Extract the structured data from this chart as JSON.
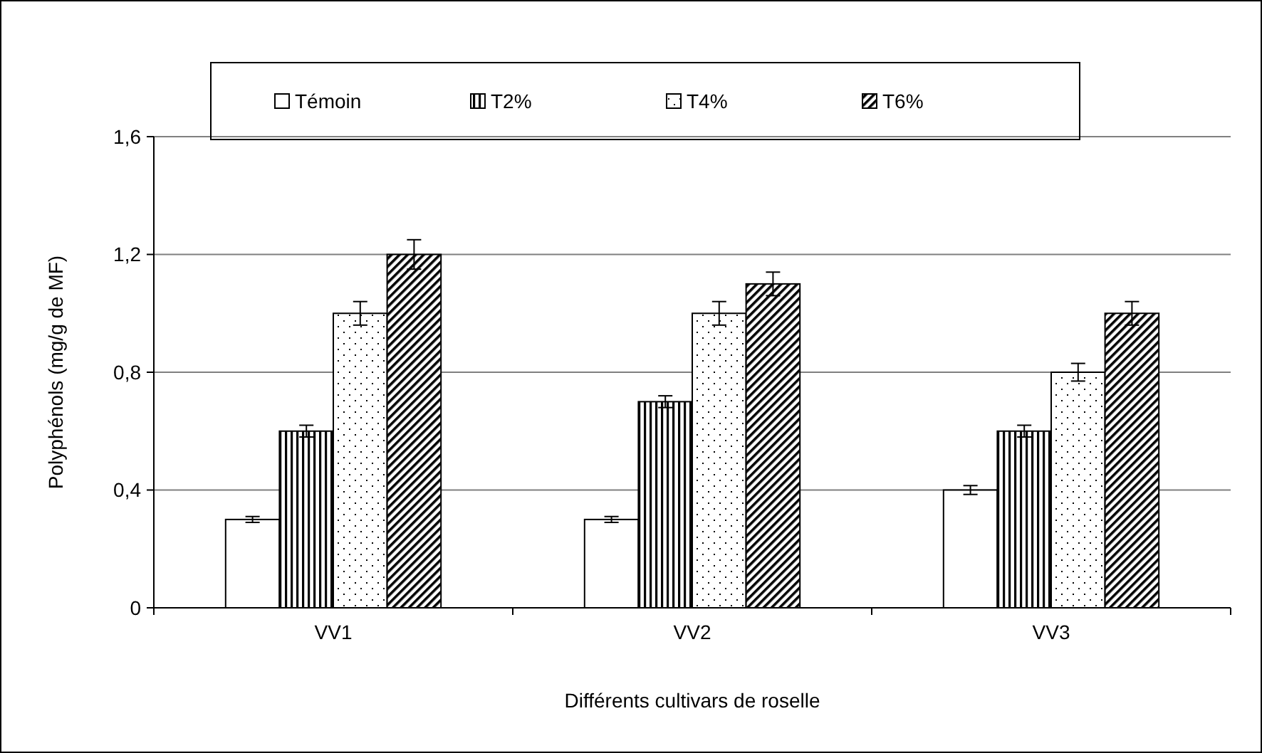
{
  "chart_data": {
    "type": "bar",
    "xlabel": "Différents cultivars de roselle",
    "ylabel": "Polyphénols (mg/g de MF)",
    "categories": [
      "VV1",
      "VV2",
      "VV3"
    ],
    "series": [
      {
        "name": "Témoin",
        "color": "#000000",
        "values": [
          0.3,
          0.3,
          0.4
        ],
        "errors": [
          0.01,
          0.01,
          0.015
        ]
      },
      {
        "name": "T2%",
        "color": "#000000",
        "values": [
          0.6,
          0.7,
          0.6
        ],
        "errors": [
          0.02,
          0.02,
          0.02
        ]
      },
      {
        "name": "T4%",
        "color": "#000000",
        "values": [
          1.0,
          1.0,
          0.8
        ],
        "errors": [
          0.04,
          0.04,
          0.03
        ]
      },
      {
        "name": "T6%",
        "color": "#000000",
        "values": [
          1.2,
          1.1,
          1.0
        ],
        "errors": [
          0.05,
          0.04,
          0.04
        ]
      }
    ],
    "ylim": [
      0,
      1.6
    ],
    "yticks": [
      0,
      {
        "value": 0.4,
        "label": "0,4"
      },
      {
        "value": 0.8,
        "label": "0,8"
      },
      {
        "value": 1.2,
        "label": "1,2"
      },
      {
        "value": 1.6,
        "label": "1,6"
      }
    ],
    "grid": "y",
    "legend": "top"
  }
}
